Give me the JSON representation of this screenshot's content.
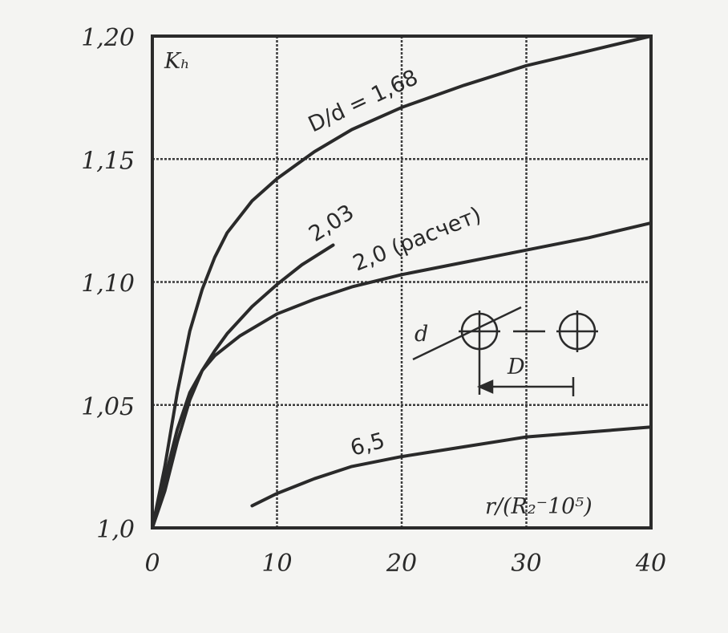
{
  "chart_data": {
    "type": "line",
    "ylabel": "Kₕ",
    "xlabel": "r/(R₂⁻10⁵)",
    "xlim": [
      0,
      40
    ],
    "ylim": [
      1.0,
      1.2
    ],
    "grid": true,
    "x_ticks": [
      {
        "value": 0,
        "label": "0"
      },
      {
        "value": 10,
        "label": "10"
      },
      {
        "value": 20,
        "label": "20"
      },
      {
        "value": 30,
        "label": "30"
      },
      {
        "value": 40,
        "label": "40"
      }
    ],
    "y_ticks": [
      {
        "value": 1.0,
        "label": "1,0"
      },
      {
        "value": 1.05,
        "label": "1,05"
      },
      {
        "value": 1.1,
        "label": "1,10"
      },
      {
        "value": 1.15,
        "label": "1,15"
      },
      {
        "value": 1.2,
        "label": "1,20"
      }
    ],
    "series": [
      {
        "name": "D/d = 1,68",
        "x": [
          0,
          1,
          2,
          3,
          4,
          5,
          6,
          8,
          10,
          13,
          16,
          20,
          25,
          30,
          35,
          40
        ],
        "y": [
          1.0,
          1.025,
          1.055,
          1.08,
          1.097,
          1.11,
          1.12,
          1.133,
          1.142,
          1.153,
          1.162,
          1.171,
          1.18,
          1.188,
          1.194,
          1.2
        ]
      },
      {
        "name": "2,03",
        "x": [
          0,
          1,
          2,
          3,
          4,
          5,
          6,
          8,
          10,
          12,
          14.5
        ],
        "y": [
          1.0,
          1.015,
          1.035,
          1.052,
          1.064,
          1.072,
          1.079,
          1.09,
          1.099,
          1.107,
          1.115
        ]
      },
      {
        "name": "2,0 (расчет)",
        "x": [
          0,
          1,
          2,
          3,
          4,
          5,
          7,
          10,
          13,
          16,
          20,
          25,
          30,
          35,
          40
        ],
        "y": [
          1.0,
          1.02,
          1.04,
          1.055,
          1.064,
          1.07,
          1.078,
          1.087,
          1.093,
          1.098,
          1.103,
          1.108,
          1.113,
          1.118,
          1.124
        ]
      },
      {
        "name": "6,5",
        "x": [
          8,
          10,
          13,
          16,
          20,
          25,
          30,
          35,
          40
        ],
        "y": [
          1.009,
          1.014,
          1.02,
          1.025,
          1.029,
          1.033,
          1.037,
          1.039,
          1.041
        ]
      }
    ],
    "annotations": {
      "d": "d",
      "D": "D"
    }
  }
}
